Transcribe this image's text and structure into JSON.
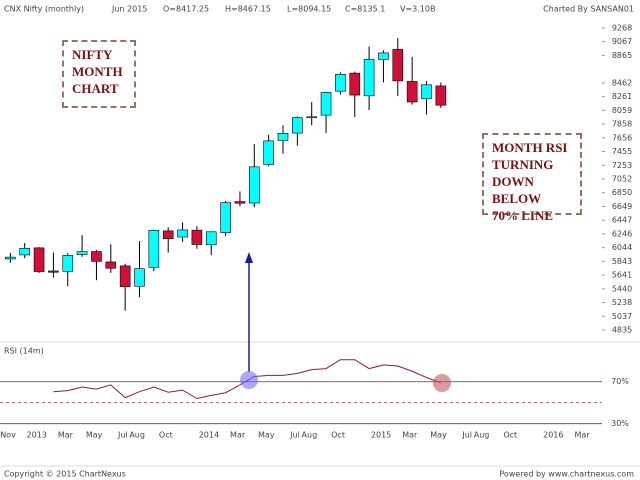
{
  "chart_data": {
    "type": "candlestick",
    "title": "CNX Nifty (monthly)",
    "info": [
      "Jun 2015",
      "O=8417.25",
      "H=8467.15",
      "L=8094.15",
      "C=8135.1",
      "V=3.10B"
    ],
    "credit": "Charted By SANSAN01",
    "footer_left": "Copyright © 2015 ChartNexus",
    "footer_right": "Powered by www.chartnexus.com",
    "categories": [
      "Nov",
      null,
      "2013",
      null,
      "Mar",
      null,
      "May",
      null,
      "Jul",
      "Aug",
      null,
      "Oct",
      null,
      null,
      "2014",
      null,
      "Mar",
      null,
      "May",
      null,
      "Jul",
      "Aug",
      null,
      "Oct",
      null,
      null,
      "2015",
      null,
      "Mar",
      null,
      "May",
      null,
      "Jul",
      "Aug",
      null,
      "Oct",
      null,
      null,
      "2016",
      null,
      "Mar"
    ],
    "open": [
      null,
      5878,
      5937,
      6041,
      5702,
      5697,
      5944,
      5987,
      5834,
      5776,
      5478,
      5756,
      6290,
      6200,
      6301,
      6086,
      6265,
      6720,
      6699,
      7264,
      7617,
      7725,
      7958,
      7989,
      8341,
      8605,
      8272,
      8806,
      8953,
      8483,
      8229,
      8417.25,
      null,
      null,
      null,
      null,
      null,
      null,
      null,
      null,
      null
    ],
    "high": [
      null,
      5965,
      6111,
      6052,
      5971,
      5962,
      6229,
      6011,
      6093,
      5809,
      6142,
      6309,
      6342,
      6415,
      6358,
      6282,
      6730,
      6869,
      7563,
      7700,
      7841,
      7968,
      8180,
      8330,
      8617,
      8627,
      8996,
      8941,
      9119,
      8845,
      8490,
      8467.15,
      null,
      null,
      null,
      null,
      null,
      null,
      null,
      null,
      null
    ],
    "low": [
      null,
      5823,
      5889,
      5672,
      5604,
      5477,
      5910,
      5566,
      5675,
      5118,
      5318,
      5700,
      5972,
      6129,
      6027,
      5933,
      6212,
      6650,
      6638,
      7239,
      7422,
      7540,
      7841,
      7724,
      8290,
      7961,
      8065,
      8470,
      8269,
      8144,
      7997,
      8094.15,
      null,
      null,
      null,
      null,
      null,
      null,
      null,
      null,
      null
    ],
    "close": [
      null,
      5905,
      6035,
      5693,
      5683,
      5930,
      5986,
      5842,
      5742,
      5471,
      5735,
      6299,
      6176,
      6304,
      6090,
      6277,
      6704,
      6696,
      7230,
      7611,
      7721,
      7954,
      7965,
      8322,
      8588,
      8283,
      8809,
      8902,
      8491,
      8182,
      8434,
      8135.1,
      null,
      null,
      null,
      null,
      null,
      null,
      null,
      null,
      null
    ],
    "up_color": "#00ffff",
    "down_color": "#d0103a",
    "ylim": [
      4718,
      9385
    ],
    "yticks": [
      9268,
      9067,
      8865,
      8462,
      8261,
      8059,
      7858,
      7656,
      7455,
      7253,
      7052,
      6850,
      6649,
      6447,
      6246,
      6044,
      5843,
      5641,
      5440,
      5238,
      5037,
      4835
    ],
    "rsi": {
      "name": "RSI (14m)",
      "color": "#8b1a4a",
      "values": [
        null,
        null,
        null,
        null,
        60.5,
        61.5,
        65,
        63,
        67,
        54.8,
        60.5,
        65,
        60,
        62,
        54,
        57,
        59.5,
        67,
        75,
        76,
        76,
        78,
        81.5,
        82.5,
        91,
        91,
        82.5,
        86,
        85,
        80,
        74,
        69,
        null,
        null,
        null,
        null,
        null,
        null,
        null,
        null,
        null
      ],
      "ylim": [
        24,
        105
      ],
      "yticks": [
        {
          "value": 70,
          "label": "70%"
        },
        {
          "value": 30,
          "label": "30%"
        }
      ],
      "midline": 50
    },
    "annotations": [
      {
        "lines": [
          "NIFTY",
          "MONTH",
          "CHART"
        ]
      },
      {
        "lines": [
          "MONTH RSI",
          "TURNING",
          "DOWN",
          "BELOW",
          "70% LINE"
        ]
      }
    ]
  }
}
